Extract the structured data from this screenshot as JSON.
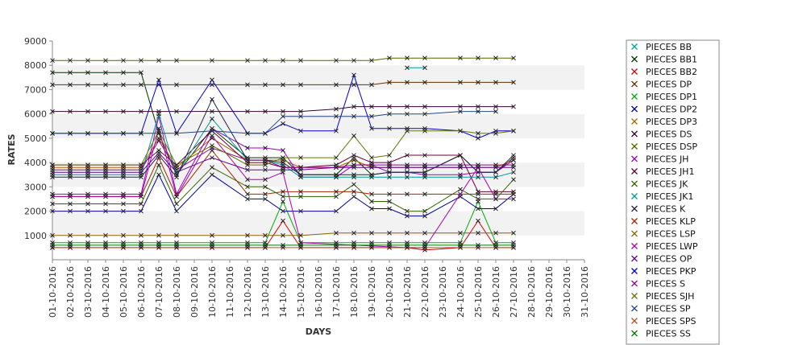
{
  "chart_data": {
    "type": "line",
    "title": "",
    "xlabel": "DAYS",
    "ylabel": "RATES",
    "ylim": [
      0,
      9000
    ],
    "yticks": [
      1000,
      2000,
      3000,
      4000,
      5000,
      6000,
      7000,
      8000,
      9000
    ],
    "grid": true,
    "legend_placement": "right",
    "categories": [
      "01-10-2016",
      "02-10-2016",
      "03-10-2016",
      "04-10-2016",
      "05-10-2016",
      "06-10-2016",
      "07-10-2016",
      "08-10-2016",
      "09-10-2016",
      "10-10-2016",
      "11-10-2016",
      "12-10-2016",
      "13-10-2016",
      "14-10-2016",
      "15-10-2016",
      "16-10-2016",
      "17-10-2016",
      "18-10-2016",
      "19-10-2016",
      "20-10-2016",
      "21-10-2016",
      "22-10-2016",
      "23-10-2016",
      "24-10-2016",
      "25-10-2016",
      "26-10-2016",
      "27-10-2016",
      "28-10-2016",
      "29-10-2016",
      "30-10-2016",
      "31-10-2016"
    ],
    "series": [
      {
        "name": "PIECES BB",
        "color": "#00a0a0",
        "values": [
          null,
          null,
          null,
          null,
          null,
          null,
          null,
          null,
          null,
          null,
          null,
          null,
          null,
          null,
          null,
          null,
          null,
          null,
          null,
          null,
          7900,
          7900,
          null,
          null,
          null,
          null,
          null,
          null,
          null,
          null,
          null
        ]
      },
      {
        "name": "PIECES BB1",
        "color": "#003300",
        "values": [
          7700,
          7700,
          7700,
          7700,
          7700,
          7700,
          5200,
          3500,
          null,
          5400,
          null,
          4200,
          4200,
          4200,
          3500,
          null,
          3500,
          4200,
          3500,
          3600,
          3600,
          3600,
          null,
          4300,
          3600,
          3600,
          4200,
          null,
          null,
          null,
          null
        ]
      },
      {
        "name": "PIECES BB2",
        "color": "#cc0000",
        "values": [
          500,
          500,
          500,
          500,
          500,
          500,
          500,
          500,
          null,
          500,
          null,
          500,
          500,
          1600,
          500,
          null,
          500,
          500,
          500,
          500,
          500,
          400,
          null,
          500,
          1600,
          500,
          500,
          null,
          null,
          null,
          null
        ]
      },
      {
        "name": "PIECES DP",
        "color": "#663300",
        "values": [
          7200,
          7200,
          7200,
          7200,
          7200,
          7200,
          7200,
          7200,
          null,
          7200,
          null,
          7200,
          7200,
          7200,
          7200,
          null,
          7200,
          7200,
          7200,
          7300,
          7300,
          7300,
          null,
          7300,
          7300,
          7300,
          7300,
          null,
          null,
          null,
          null
        ]
      },
      {
        "name": "PIECES DP1",
        "color": "#00aa00",
        "values": [
          700,
          700,
          700,
          700,
          700,
          700,
          700,
          700,
          null,
          700,
          null,
          700,
          700,
          2400,
          700,
          null,
          700,
          700,
          700,
          700,
          700,
          700,
          null,
          700,
          2400,
          700,
          700,
          null,
          null,
          null,
          null
        ]
      },
      {
        "name": "PIECES DP2",
        "color": "#000099",
        "values": [
          2000,
          2000,
          2000,
          2000,
          2000,
          2000,
          3500,
          2000,
          null,
          3500,
          null,
          2500,
          2500,
          2000,
          2000,
          null,
          2000,
          2600,
          2100,
          2100,
          1800,
          1800,
          null,
          2600,
          2100,
          2100,
          2700,
          null,
          null,
          null,
          null
        ]
      },
      {
        "name": "PIECES DP3",
        "color": "#aa6600",
        "values": [
          3800,
          3800,
          3800,
          3800,
          3800,
          3800,
          5000,
          3800,
          null,
          5000,
          null,
          4100,
          4100,
          4100,
          3800,
          null,
          3800,
          4100,
          3800,
          3800,
          3800,
          3800,
          null,
          3800,
          3800,
          3800,
          4100,
          null,
          null,
          null,
          null
        ]
      },
      {
        "name": "PIECES DS",
        "color": "#330033",
        "values": [
          6100,
          6100,
          6100,
          6100,
          6100,
          6100,
          6100,
          6100,
          null,
          6100,
          null,
          6100,
          6100,
          6100,
          6100,
          null,
          6200,
          6300,
          6300,
          6300,
          6300,
          6300,
          null,
          6300,
          6300,
          6300,
          6300,
          null,
          null,
          null,
          null
        ]
      },
      {
        "name": "PIECES DSP",
        "color": "#556600",
        "values": [
          8200,
          8200,
          8200,
          8200,
          8200,
          8200,
          8200,
          8200,
          null,
          8200,
          null,
          8200,
          8200,
          8200,
          8200,
          null,
          8200,
          8200,
          8200,
          8300,
          8300,
          8300,
          null,
          8300,
          8300,
          8300,
          8300,
          null,
          null,
          null,
          null
        ]
      },
      {
        "name": "PIECES JH",
        "color": "#9900cc",
        "values": [
          2700,
          2700,
          2700,
          2700,
          2700,
          2700,
          5900,
          2700,
          null,
          5400,
          null,
          4600,
          4600,
          4500,
          3400,
          null,
          3400,
          3900,
          3900,
          3600,
          3600,
          3500,
          null,
          3500,
          3600,
          3600,
          4100,
          null,
          null,
          null,
          null
        ]
      },
      {
        "name": "PIECES JH1",
        "color": "#660033",
        "values": [
          3900,
          3900,
          3900,
          3900,
          3900,
          3900,
          4500,
          3900,
          null,
          5300,
          null,
          4000,
          4000,
          3800,
          3800,
          null,
          3900,
          4300,
          4000,
          4000,
          4300,
          4300,
          null,
          4300,
          2800,
          2800,
          2800,
          null,
          null,
          null,
          null
        ]
      },
      {
        "name": "PIECES JK",
        "color": "#336600",
        "values": [
          2300,
          2300,
          2300,
          2300,
          2300,
          2300,
          3900,
          2300,
          null,
          3800,
          null,
          3000,
          3000,
          2600,
          2600,
          null,
          2600,
          3100,
          2400,
          2400,
          2000,
          2000,
          null,
          2900,
          2500,
          2500,
          3300,
          null,
          null,
          null,
          null
        ]
      },
      {
        "name": "PIECES JK1",
        "color": "#009999",
        "values": [
          3500,
          3500,
          3500,
          3500,
          3500,
          3500,
          6000,
          3500,
          null,
          5800,
          null,
          4100,
          4100,
          3900,
          3400,
          null,
          3400,
          3400,
          3400,
          3400,
          3400,
          3400,
          null,
          3400,
          3400,
          3400,
          3600,
          null,
          null,
          null,
          null
        ]
      },
      {
        "name": "PIECES K",
        "color": "#222244",
        "values": [
          3400,
          3400,
          3400,
          3400,
          3400,
          3400,
          4300,
          3400,
          null,
          6600,
          null,
          4100,
          4100,
          4000,
          3500,
          null,
          3500,
          3500,
          3500,
          3600,
          3600,
          3600,
          null,
          4300,
          3600,
          3600,
          4300,
          null,
          null,
          null,
          null
        ]
      },
      {
        "name": "PIECES KLP",
        "color": "#aa2200",
        "values": [
          2600,
          2600,
          2600,
          2600,
          2600,
          2600,
          4200,
          2600,
          null,
          4500,
          null,
          2700,
          2700,
          2800,
          2800,
          null,
          2800,
          2800,
          2700,
          2700,
          2700,
          2700,
          null,
          2700,
          2700,
          2700,
          2700,
          null,
          null,
          null,
          null
        ]
      },
      {
        "name": "PIECES LSP",
        "color": "#886600",
        "values": [
          1000,
          1000,
          1000,
          1000,
          1000,
          1000,
          1000,
          1000,
          null,
          1000,
          null,
          1000,
          1000,
          1000,
          1000,
          null,
          1100,
          1100,
          1100,
          1100,
          1100,
          1100,
          null,
          1100,
          1100,
          1100,
          1100,
          null,
          null,
          null,
          null
        ]
      },
      {
        "name": "PIECES LWP",
        "color": "#aa00aa",
        "values": [
          2600,
          2600,
          2600,
          2600,
          2600,
          2600,
          5400,
          2600,
          null,
          5100,
          null,
          3300,
          3300,
          3600,
          700,
          null,
          null,
          null,
          null,
          null,
          500,
          500,
          null,
          null,
          3800,
          2500,
          2500,
          null,
          null,
          null,
          null
        ]
      },
      {
        "name": "PIECES OP",
        "color": "#660099",
        "values": [
          3600,
          3600,
          3600,
          3600,
          3600,
          3600,
          4400,
          3600,
          null,
          4200,
          null,
          3700,
          3700,
          3700,
          3700,
          null,
          3800,
          3800,
          3800,
          3800,
          3800,
          3800,
          null,
          3800,
          3800,
          3800,
          3800,
          null,
          null,
          null,
          null
        ]
      },
      {
        "name": "PIECES PKP",
        "color": "#0000cc",
        "values": [
          5200,
          5200,
          5200,
          5200,
          5200,
          5200,
          7400,
          5200,
          null,
          7400,
          null,
          5200,
          5200,
          5600,
          5300,
          null,
          5300,
          7600,
          5400,
          5400,
          5400,
          5400,
          null,
          5300,
          5000,
          5300,
          5300,
          null,
          null,
          null,
          null
        ]
      },
      {
        "name": "PIECES S",
        "color": "#990099",
        "values": [
          3700,
          3700,
          3700,
          3700,
          3700,
          3700,
          4900,
          3700,
          null,
          4600,
          null,
          4100,
          4100,
          3800,
          3800,
          null,
          3800,
          3900,
          3900,
          3900,
          3900,
          3900,
          null,
          3900,
          3900,
          3900,
          3900,
          null,
          null,
          null,
          null
        ]
      },
      {
        "name": "PIECES SJH",
        "color": "#667700",
        "values": [
          3900,
          3900,
          3900,
          3900,
          3900,
          3900,
          5300,
          3900,
          null,
          4700,
          null,
          3900,
          3900,
          4200,
          4200,
          null,
          4200,
          5100,
          4200,
          4300,
          5300,
          5300,
          null,
          5300,
          5200,
          5200,
          5300,
          null,
          null,
          null,
          null
        ]
      },
      {
        "name": "PIECES SP",
        "color": "#224488",
        "values": [
          5200,
          5200,
          5200,
          5200,
          5200,
          5200,
          5200,
          5200,
          null,
          5300,
          null,
          5200,
          5200,
          5900,
          5900,
          null,
          5900,
          5900,
          5900,
          6000,
          6000,
          6000,
          null,
          6100,
          6100,
          6100,
          null,
          null,
          null,
          null,
          null
        ]
      },
      {
        "name": "PIECES SPS",
        "color": "#aa5522",
        "values": [
          500,
          500,
          500,
          500,
          500,
          500,
          500,
          500,
          null,
          500,
          null,
          500,
          500,
          500,
          500,
          null,
          500,
          500,
          500,
          500,
          500,
          500,
          null,
          500,
          500,
          500,
          500,
          null,
          null,
          null,
          null
        ]
      },
      {
        "name": "PIECES SS",
        "color": "#007700",
        "values": [
          600,
          600,
          600,
          600,
          600,
          600,
          600,
          600,
          null,
          600,
          null,
          600,
          600,
          600,
          600,
          null,
          600,
          600,
          600,
          600,
          600,
          600,
          null,
          600,
          600,
          600,
          600,
          null,
          null,
          null,
          null
        ]
      }
    ]
  }
}
